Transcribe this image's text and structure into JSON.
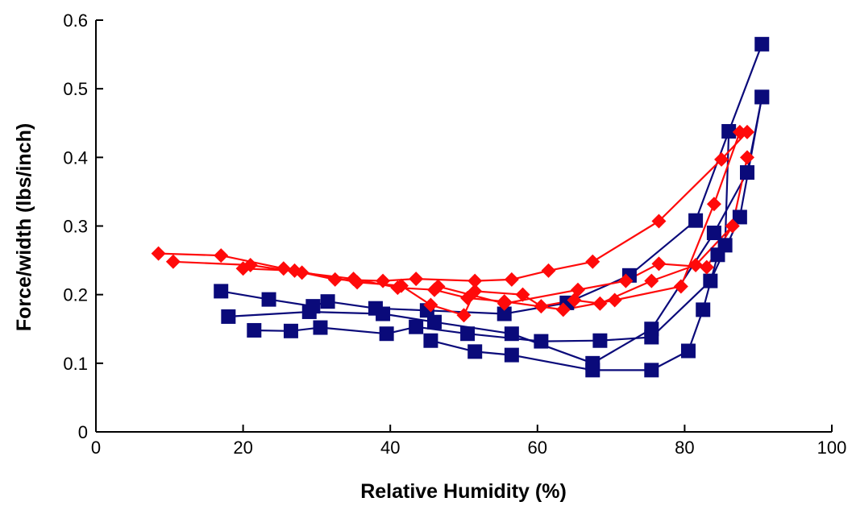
{
  "chart_data": {
    "type": "scatter",
    "title": "",
    "xlabel": "Relative Humidity (%)",
    "ylabel": "Force/width (lbs/inch)",
    "xlim": [
      0,
      100
    ],
    "ylim": [
      0,
      0.6
    ],
    "xticks": [
      0,
      20,
      40,
      60,
      80,
      100
    ],
    "yticks": [
      0,
      0.1,
      0.2,
      0.3,
      0.4,
      0.5,
      0.6
    ],
    "grid": false,
    "legend": "none",
    "series": [
      {
        "marker": "square",
        "color": "#0a0a7a",
        "points": [
          [
            17,
            0.205
          ],
          [
            23.5,
            0.193
          ],
          [
            29.5,
            0.183
          ],
          [
            31.5,
            0.19
          ],
          [
            38,
            0.18
          ],
          [
            45,
            0.177
          ],
          [
            55.5,
            0.172
          ],
          [
            64,
            0.188
          ],
          [
            72.5,
            0.228
          ],
          [
            81.5,
            0.308
          ],
          [
            86,
            0.438
          ],
          [
            90.5,
            0.565
          ],
          [
            18,
            0.168
          ],
          [
            29,
            0.175
          ],
          [
            39,
            0.172
          ],
          [
            46,
            0.16
          ],
          [
            56.5,
            0.143
          ],
          [
            67.5,
            0.1
          ],
          [
            75.5,
            0.15
          ],
          [
            84,
            0.29
          ],
          [
            88.5,
            0.378
          ],
          [
            90.5,
            0.488
          ],
          [
            21.5,
            0.148
          ],
          [
            26.5,
            0.147
          ],
          [
            30.5,
            0.152
          ],
          [
            39.5,
            0.143
          ],
          [
            43.5,
            0.153
          ],
          [
            50.5,
            0.143
          ],
          [
            60.5,
            0.132
          ],
          [
            68.5,
            0.133
          ],
          [
            75.5,
            0.138
          ],
          [
            83.5,
            0.22
          ],
          [
            87.5,
            0.313
          ],
          [
            90.5,
            0.488
          ],
          [
            45.5,
            0.133
          ],
          [
            51.5,
            0.117
          ],
          [
            56.5,
            0.112
          ],
          [
            67.5,
            0.09
          ],
          [
            75.5,
            0.09
          ],
          [
            80.5,
            0.118
          ],
          [
            82.5,
            0.178
          ],
          [
            84.5,
            0.258
          ],
          [
            85.5,
            0.272
          ]
        ],
        "lines": [
          [
            [
              17,
              0.205
            ],
            [
              23.5,
              0.193
            ],
            [
              29.5,
              0.183
            ],
            [
              31.5,
              0.19
            ],
            [
              38,
              0.18
            ],
            [
              45,
              0.177
            ],
            [
              55.5,
              0.172
            ],
            [
              64,
              0.188
            ],
            [
              72.5,
              0.228
            ],
            [
              81.5,
              0.308
            ],
            [
              86,
              0.438
            ],
            [
              90.5,
              0.565
            ]
          ],
          [
            [
              18,
              0.168
            ],
            [
              29,
              0.175
            ],
            [
              39,
              0.172
            ],
            [
              46,
              0.16
            ],
            [
              56.5,
              0.143
            ],
            [
              67.5,
              0.1
            ],
            [
              75.5,
              0.15
            ],
            [
              84,
              0.29
            ],
            [
              88.5,
              0.378
            ],
            [
              90.5,
              0.488
            ]
          ],
          [
            [
              21.5,
              0.148
            ],
            [
              26.5,
              0.147
            ],
            [
              30.5,
              0.152
            ],
            [
              39.5,
              0.143
            ],
            [
              43.5,
              0.153
            ],
            [
              50.5,
              0.143
            ],
            [
              60.5,
              0.132
            ],
            [
              68.5,
              0.133
            ],
            [
              75.5,
              0.138
            ],
            [
              83.5,
              0.22
            ],
            [
              87.5,
              0.313
            ],
            [
              90.5,
              0.488
            ]
          ],
          [
            [
              45.5,
              0.133
            ],
            [
              51.5,
              0.117
            ],
            [
              56.5,
              0.112
            ],
            [
              67.5,
              0.09
            ],
            [
              75.5,
              0.09
            ],
            [
              80.5,
              0.118
            ],
            [
              82.5,
              0.178
            ],
            [
              84.5,
              0.258
            ],
            [
              85.5,
              0.272
            ],
            [
              86,
              0.438
            ]
          ]
        ]
      },
      {
        "marker": "diamond",
        "color": "#ff0a0a",
        "points": [
          [
            8.5,
            0.26
          ],
          [
            17,
            0.257
          ],
          [
            25.5,
            0.238
          ],
          [
            32.5,
            0.222
          ],
          [
            39,
            0.22
          ],
          [
            43.5,
            0.223
          ],
          [
            51.5,
            0.22
          ],
          [
            56.5,
            0.222
          ],
          [
            61.5,
            0.235
          ],
          [
            67.5,
            0.248
          ],
          [
            76.5,
            0.307
          ],
          [
            85,
            0.397
          ],
          [
            88.5,
            0.437
          ],
          [
            10.5,
            0.248
          ],
          [
            21,
            0.243
          ],
          [
            28,
            0.232
          ],
          [
            35,
            0.223
          ],
          [
            41,
            0.21
          ],
          [
            46,
            0.207
          ],
          [
            50.5,
            0.195
          ],
          [
            55.5,
            0.19
          ],
          [
            63.5,
            0.178
          ],
          [
            70.5,
            0.192
          ],
          [
            79.5,
            0.212
          ],
          [
            84,
            0.332
          ],
          [
            87.5,
            0.437
          ],
          [
            20,
            0.238
          ],
          [
            27,
            0.235
          ],
          [
            35.5,
            0.218
          ],
          [
            41.5,
            0.213
          ],
          [
            45.5,
            0.185
          ],
          [
            50,
            0.17
          ],
          [
            51.5,
            0.205
          ],
          [
            58,
            0.2
          ],
          [
            60.5,
            0.183
          ],
          [
            65,
            0.192
          ],
          [
            68.5,
            0.187
          ],
          [
            75.5,
            0.22
          ],
          [
            81.5,
            0.243
          ],
          [
            86.5,
            0.3
          ],
          [
            88.5,
            0.4
          ],
          [
            46.5,
            0.212
          ],
          [
            55.5,
            0.187
          ],
          [
            65.5,
            0.207
          ],
          [
            72,
            0.22
          ],
          [
            76.5,
            0.245
          ],
          [
            83,
            0.24
          ]
        ],
        "lines": [
          [
            [
              8.5,
              0.26
            ],
            [
              17,
              0.257
            ],
            [
              25.5,
              0.238
            ],
            [
              32.5,
              0.222
            ],
            [
              39,
              0.22
            ],
            [
              43.5,
              0.223
            ],
            [
              51.5,
              0.22
            ],
            [
              56.5,
              0.222
            ],
            [
              61.5,
              0.235
            ],
            [
              67.5,
              0.248
            ],
            [
              76.5,
              0.307
            ],
            [
              85,
              0.397
            ],
            [
              88.5,
              0.437
            ]
          ],
          [
            [
              10.5,
              0.248
            ],
            [
              21,
              0.243
            ],
            [
              28,
              0.232
            ],
            [
              35,
              0.223
            ],
            [
              41,
              0.21
            ],
            [
              46,
              0.207
            ],
            [
              50.5,
              0.195
            ],
            [
              55.5,
              0.19
            ],
            [
              63.5,
              0.178
            ],
            [
              70.5,
              0.192
            ],
            [
              79.5,
              0.212
            ],
            [
              84,
              0.332
            ],
            [
              87.5,
              0.437
            ]
          ],
          [
            [
              20,
              0.238
            ],
            [
              27,
              0.235
            ],
            [
              35.5,
              0.218
            ],
            [
              41.5,
              0.213
            ],
            [
              45.5,
              0.185
            ],
            [
              50,
              0.17
            ],
            [
              51.5,
              0.205
            ],
            [
              58,
              0.2
            ],
            [
              60.5,
              0.183
            ],
            [
              65,
              0.192
            ],
            [
              68.5,
              0.187
            ],
            [
              75.5,
              0.22
            ],
            [
              81.5,
              0.243
            ],
            [
              86.5,
              0.3
            ],
            [
              88.5,
              0.4
            ]
          ],
          [
            [
              46.5,
              0.212
            ],
            [
              55.5,
              0.187
            ],
            [
              65.5,
              0.207
            ],
            [
              72,
              0.22
            ],
            [
              76.5,
              0.245
            ],
            [
              83,
              0.24
            ],
            [
              86.5,
              0.3
            ]
          ]
        ]
      }
    ]
  }
}
